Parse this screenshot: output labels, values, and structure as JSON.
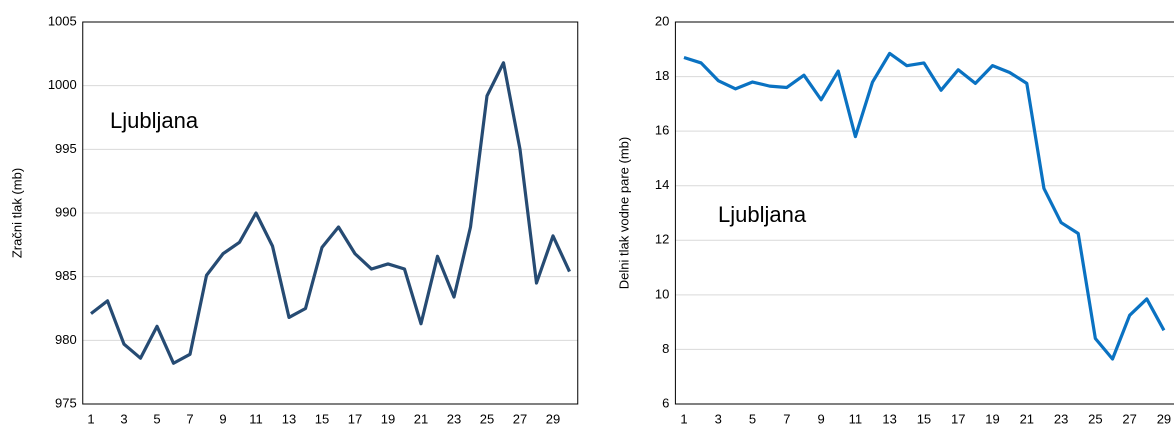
{
  "chart_data": [
    {
      "type": "line",
      "y_label": "Zračni tlak (mb)",
      "annotation": "Ljubljana",
      "categories": [
        "1",
        null,
        "3",
        null,
        "5",
        null,
        "7",
        null,
        "9",
        null,
        "11",
        null,
        "13",
        null,
        "15",
        null,
        "17",
        null,
        "19",
        null,
        "21",
        null,
        "23",
        null,
        "25",
        null,
        "27",
        null,
        "29",
        null
      ],
      "series": [
        {
          "color": "#264b73",
          "values": [
            982.1,
            983.1,
            979.7,
            978.6,
            981.1,
            978.2,
            978.9,
            985.1,
            986.8,
            987.7,
            990.0,
            987.4,
            981.8,
            982.5,
            987.3,
            988.9,
            986.8,
            985.6,
            986.0,
            985.6,
            981.3,
            986.6,
            983.4,
            988.9,
            999.2,
            1001.8,
            995.0,
            984.5,
            988.2,
            985.4
          ]
        }
      ],
      "ylim": [
        975,
        1005
      ],
      "yticks": [
        975,
        980,
        985,
        990,
        995,
        1000,
        1005
      ],
      "grid": true
    },
    {
      "type": "line",
      "y_label": "Delni tlak vodne pare (mb)",
      "annotation": "Ljubljana",
      "categories": [
        "1",
        null,
        "3",
        null,
        "5",
        null,
        "7",
        null,
        "9",
        null,
        "11",
        null,
        "13",
        null,
        "15",
        null,
        "17",
        null,
        "19",
        null,
        "21",
        null,
        "23",
        null,
        "25",
        null,
        "27",
        null,
        "29"
      ],
      "series": [
        {
          "color": "#0a72c2",
          "values": [
            18.7,
            18.5,
            17.85,
            17.55,
            17.8,
            17.65,
            17.6,
            18.05,
            17.15,
            18.2,
            15.8,
            17.8,
            18.85,
            18.4,
            18.5,
            17.5,
            18.25,
            17.75,
            18.4,
            18.15,
            17.75,
            13.9,
            12.65,
            12.25,
            8.4,
            7.65,
            9.25,
            9.85,
            8.7
          ]
        }
      ],
      "ylim": [
        6,
        20
      ],
      "yticks": [
        6,
        8,
        10,
        12,
        14,
        16,
        18,
        20
      ],
      "grid": true
    }
  ]
}
